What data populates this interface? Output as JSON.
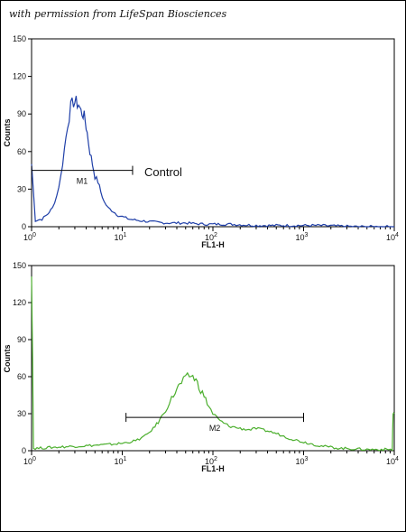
{
  "credit": "with permission from LifeSpan Biosciences",
  "chart_data": [
    {
      "type": "line",
      "name": "top-histogram",
      "xlabel": "FL1-H",
      "ylabel": "Counts",
      "x_scale": "log",
      "xlim": [
        1,
        10000
      ],
      "ylim": [
        0,
        150
      ],
      "x_ticks": [
        {
          "base": "10",
          "exp": "0"
        },
        {
          "base": "10",
          "exp": "1"
        },
        {
          "base": "10",
          "exp": "2"
        },
        {
          "base": "10",
          "exp": "3"
        },
        {
          "base": "10",
          "exp": "4"
        }
      ],
      "y_ticks": [
        "0",
        "30",
        "60",
        "90",
        "120",
        "150"
      ],
      "color": "#1f3fa8",
      "series": [
        {
          "x": [
            1,
            1.1,
            1.3,
            1.5,
            1.7,
            1.9,
            2.1,
            2.3,
            2.5,
            2.7,
            2.9,
            3.1,
            3.3,
            3.5,
            3.7,
            3.9,
            4.1,
            4.4,
            4.7,
            5.0,
            5.4,
            5.8,
            6.3,
            7.0,
            8.0,
            9.0,
            10,
            12,
            15,
            20,
            30,
            50,
            80,
            150,
            300,
            600,
            1500,
            4000,
            10000
          ],
          "y": [
            50,
            5,
            6,
            10,
            15,
            25,
            40,
            62,
            82,
            95,
            100,
            99,
            98,
            92,
            90,
            85,
            75,
            60,
            50,
            40,
            36,
            28,
            20,
            15,
            12,
            9,
            8,
            6,
            5,
            4,
            3,
            3,
            2,
            2,
            1,
            1,
            1,
            0,
            0
          ]
        }
      ],
      "marker": {
        "label": "M1",
        "x_start": 1,
        "x_end": 13,
        "y": 45
      },
      "annotation": "Control"
    },
    {
      "type": "line",
      "name": "bottom-histogram",
      "xlabel": "FL1-H",
      "ylabel": "Counts",
      "x_scale": "log",
      "xlim": [
        1,
        10000
      ],
      "ylim": [
        0,
        150
      ],
      "x_ticks": [
        {
          "base": "10",
          "exp": "0"
        },
        {
          "base": "10",
          "exp": "1"
        },
        {
          "base": "10",
          "exp": "2"
        },
        {
          "base": "10",
          "exp": "3"
        },
        {
          "base": "10",
          "exp": "4"
        }
      ],
      "y_ticks": [
        "0",
        "30",
        "60",
        "90",
        "120",
        "150"
      ],
      "color": "#4caf2e",
      "series": [
        {
          "x": [
            1,
            1.05,
            1.2,
            2,
            4,
            7,
            10,
            14,
            18,
            22,
            26,
            30,
            35,
            40,
            45,
            50,
            55,
            60,
            65,
            70,
            80,
            90,
            100,
            120,
            150,
            200,
            250,
            300,
            400,
            500,
            700,
            1000,
            1500,
            2500,
            5000,
            9500,
            9700,
            10000
          ],
          "y": [
            150,
            2,
            2,
            3,
            4,
            5,
            6,
            8,
            12,
            18,
            25,
            33,
            42,
            50,
            55,
            58,
            61,
            60,
            57,
            52,
            44,
            36,
            30,
            24,
            20,
            18,
            17,
            18,
            16,
            14,
            10,
            7,
            4,
            2,
            1,
            1,
            30,
            30
          ]
        }
      ],
      "marker": {
        "label": "M2",
        "x_start": 11,
        "x_end": 1000,
        "y": 27
      }
    }
  ]
}
